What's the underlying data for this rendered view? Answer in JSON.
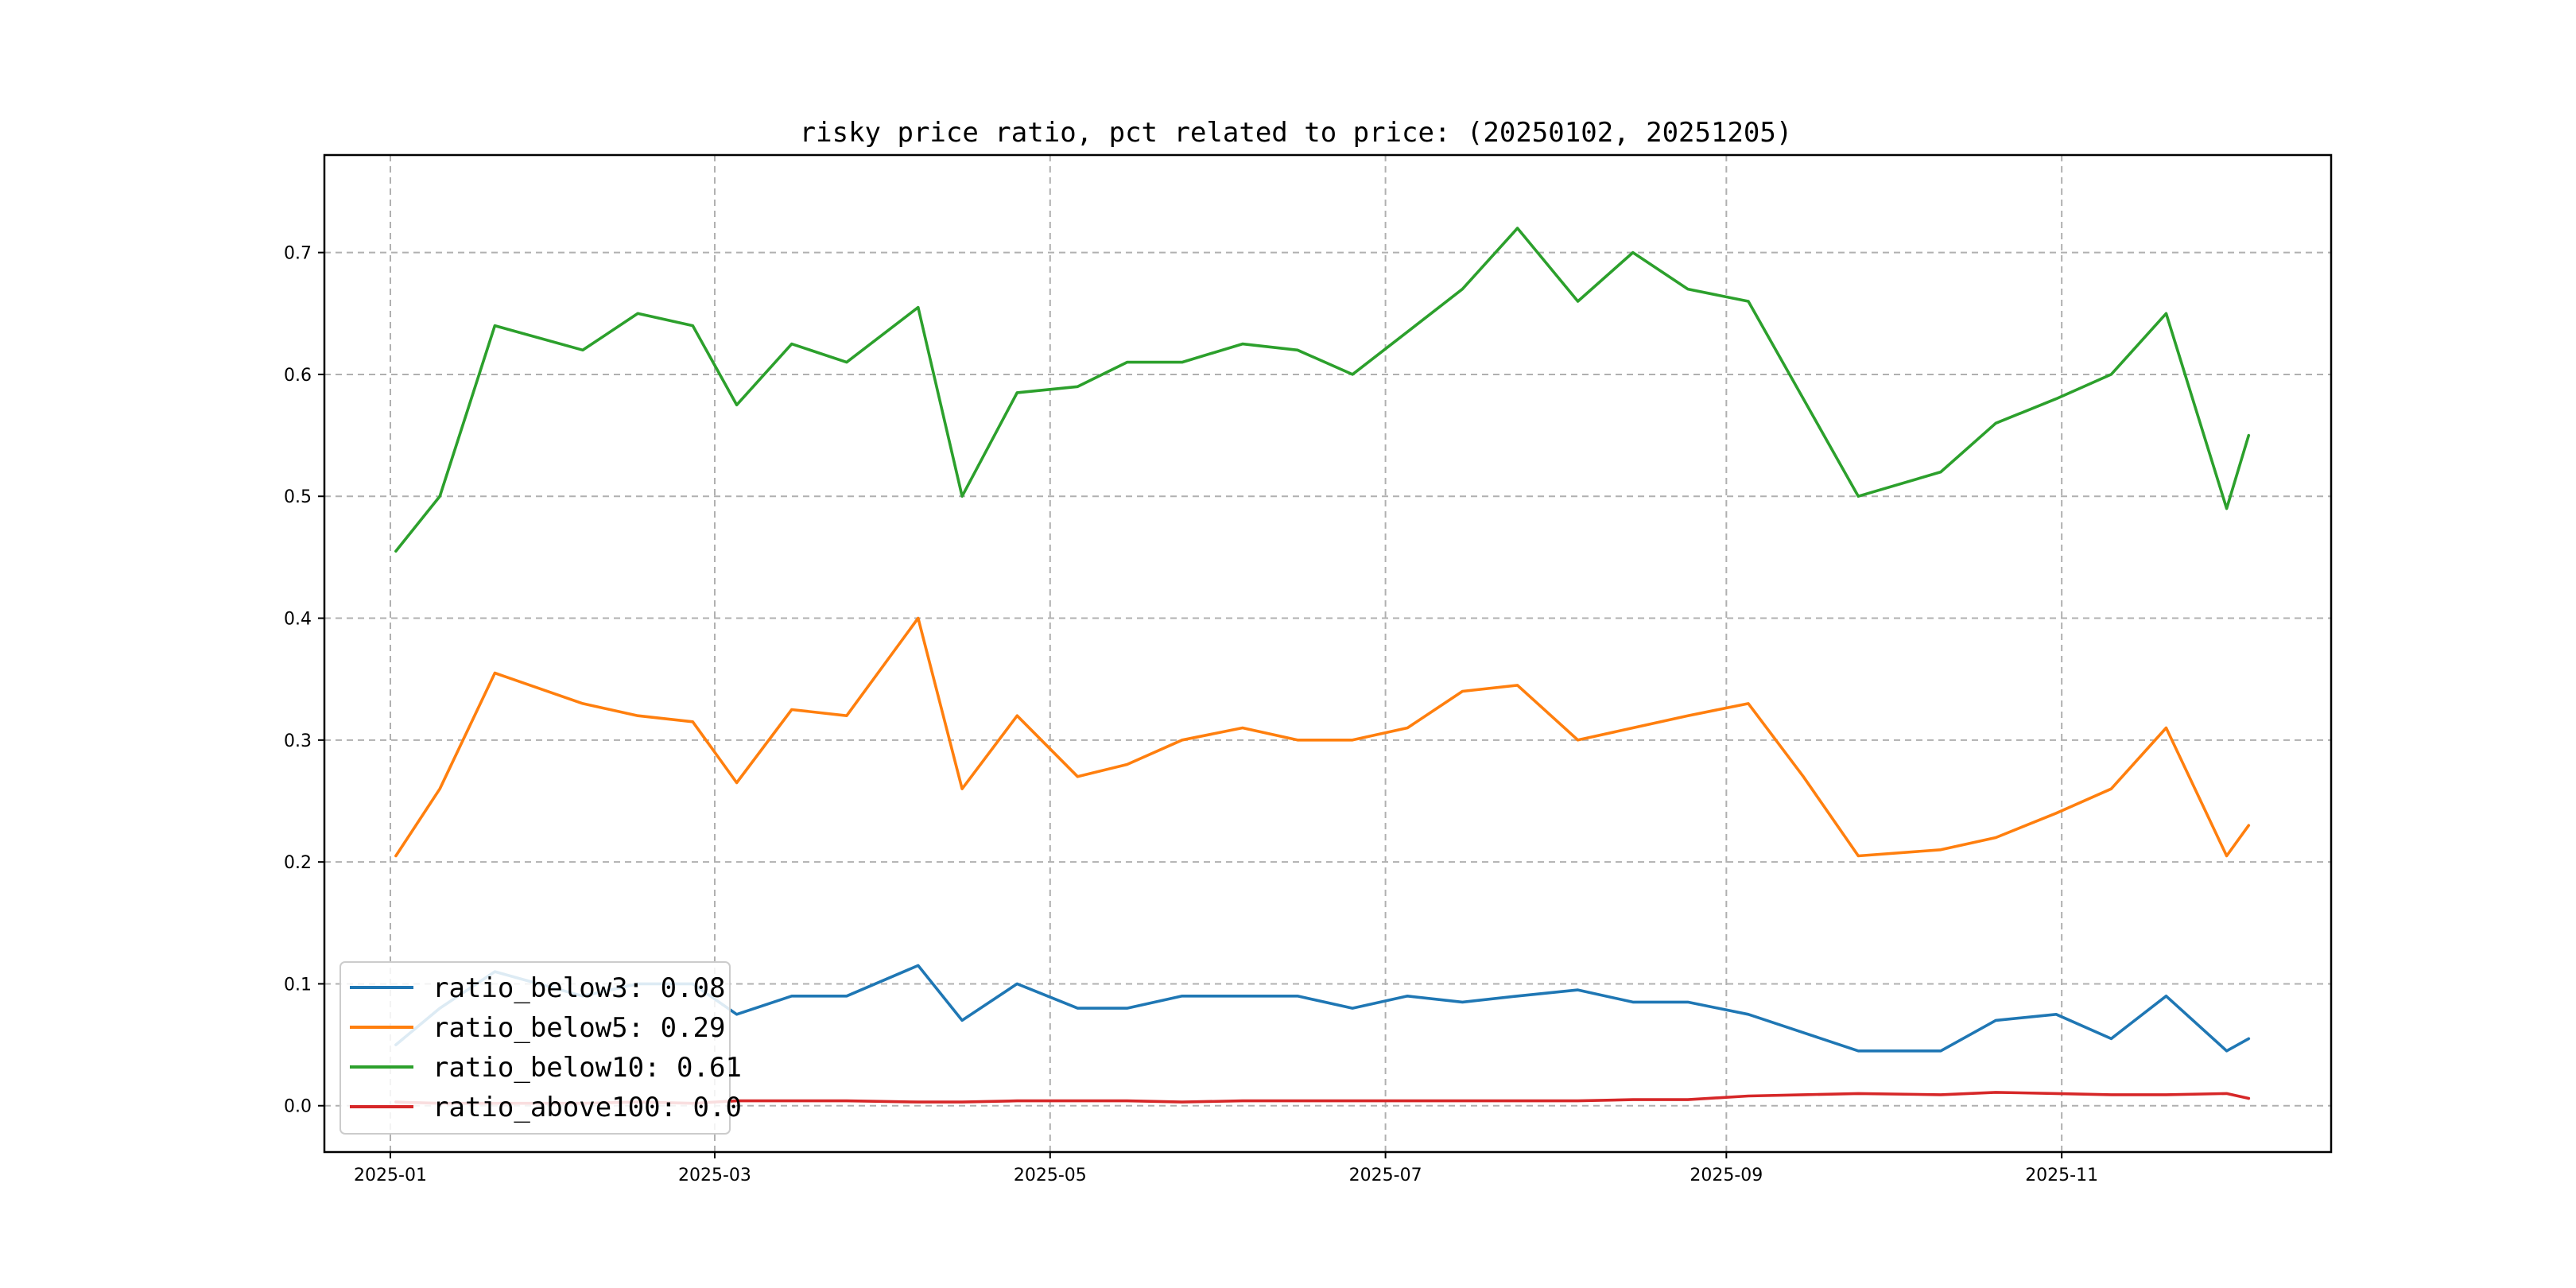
{
  "chart_data": {
    "type": "line",
    "title": "risky price ratio, pct related to price: (20250102, 20251205)",
    "xlabel": "",
    "ylabel": "",
    "xlim": [
      "2024-12-20",
      "2025-12-20"
    ],
    "ylim": [
      -0.038,
      0.78
    ],
    "x_ticks": [
      "2025-01",
      "2025-03",
      "2025-05",
      "2025-07",
      "2025-09",
      "2025-11"
    ],
    "y_ticks": [
      "0.0",
      "0.1",
      "0.2",
      "0.3",
      "0.4",
      "0.5",
      "0.6",
      "0.7"
    ],
    "grid": true,
    "legend_position": "lower-left",
    "x": [
      "2025-01-02",
      "2025-01-10",
      "2025-01-20",
      "2025-02-05",
      "2025-02-15",
      "2025-02-25",
      "2025-03-05",
      "2025-03-15",
      "2025-03-25",
      "2025-04-07",
      "2025-04-15",
      "2025-04-25",
      "2025-05-06",
      "2025-05-15",
      "2025-05-25",
      "2025-06-05",
      "2025-06-15",
      "2025-06-25",
      "2025-07-05",
      "2025-07-15",
      "2025-07-25",
      "2025-08-05",
      "2025-08-15",
      "2025-08-25",
      "2025-09-05",
      "2025-09-15",
      "2025-09-25",
      "2025-10-10",
      "2025-10-20",
      "2025-10-31",
      "2025-11-10",
      "2025-11-20",
      "2025-12-01",
      "2025-12-05"
    ],
    "series": [
      {
        "name": "ratio_below3: 0.08",
        "color": "#1f77b4",
        "values": [
          0.05,
          0.08,
          0.11,
          0.09,
          0.1,
          0.1,
          0.075,
          0.09,
          0.09,
          0.115,
          0.07,
          0.1,
          0.08,
          0.08,
          0.09,
          0.09,
          0.09,
          0.08,
          0.09,
          0.085,
          0.09,
          0.095,
          0.085,
          0.085,
          0.075,
          0.06,
          0.045,
          0.045,
          0.07,
          0.075,
          0.055,
          0.09,
          0.045,
          0.055
        ]
      },
      {
        "name": "ratio_below5: 0.29",
        "color": "#ff7f0e",
        "values": [
          0.205,
          0.26,
          0.355,
          0.33,
          0.32,
          0.315,
          0.265,
          0.325,
          0.32,
          0.4,
          0.26,
          0.32,
          0.27,
          0.28,
          0.3,
          0.31,
          0.3,
          0.3,
          0.31,
          0.34,
          0.345,
          0.3,
          0.31,
          0.32,
          0.33,
          0.27,
          0.205,
          0.21,
          0.22,
          0.24,
          0.26,
          0.31,
          0.205,
          0.23
        ]
      },
      {
        "name": "ratio_below10: 0.61",
        "color": "#2ca02c",
        "values": [
          0.455,
          0.5,
          0.64,
          0.62,
          0.65,
          0.64,
          0.575,
          0.625,
          0.61,
          0.655,
          0.5,
          0.585,
          0.59,
          0.61,
          0.61,
          0.625,
          0.62,
          0.6,
          0.635,
          0.67,
          0.72,
          0.66,
          0.7,
          0.67,
          0.66,
          0.58,
          0.5,
          0.52,
          0.56,
          0.58,
          0.6,
          0.65,
          0.49,
          0.55
        ]
      },
      {
        "name": "ratio_above100: 0.0",
        "color": "#d62728",
        "values": [
          0.003,
          0.002,
          0.002,
          0.002,
          0.003,
          0.002,
          0.004,
          0.004,
          0.004,
          0.003,
          0.003,
          0.004,
          0.004,
          0.004,
          0.003,
          0.004,
          0.004,
          0.004,
          0.004,
          0.004,
          0.004,
          0.004,
          0.005,
          0.005,
          0.008,
          0.009,
          0.01,
          0.009,
          0.011,
          0.01,
          0.009,
          0.009,
          0.01,
          0.006
        ]
      }
    ]
  }
}
